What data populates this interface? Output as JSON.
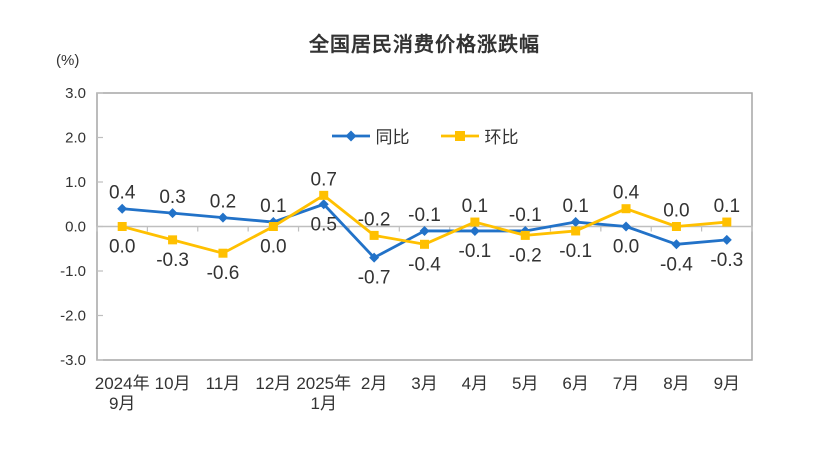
{
  "chart_data": {
    "type": "line",
    "title": "全国居民消费价格涨跌幅",
    "unit_label": "(%)",
    "categories": [
      "2024年\n9月",
      "10月",
      "11月",
      "12月",
      "2025年\n1月",
      "2月",
      "3月",
      "4月",
      "5月",
      "6月",
      "7月",
      "8月",
      "9月"
    ],
    "series": [
      {
        "id": "tongbi",
        "name": "同比",
        "marker": "diamond",
        "color": "#2272C8",
        "values": [
          0.4,
          0.3,
          0.2,
          0.1,
          0.5,
          -0.7,
          -0.1,
          -0.1,
          -0.1,
          0.1,
          0.0,
          -0.4,
          -0.3
        ]
      },
      {
        "id": "huanbi",
        "name": "环比",
        "marker": "square",
        "color": "#FFC000",
        "values": [
          0.0,
          -0.3,
          -0.6,
          0.0,
          0.7,
          -0.2,
          -0.4,
          0.1,
          -0.2,
          -0.1,
          0.4,
          0.0,
          0.1
        ]
      }
    ],
    "ylim": [
      -3.0,
      3.0
    ],
    "yticks": [
      3.0,
      2.0,
      1.0,
      0.0,
      -1.0,
      -2.0,
      -3.0
    ],
    "ytick_format_decimals": 1,
    "grid": false,
    "legend_position": "inside-top-center",
    "colors": {
      "axis": "#BFBFBF",
      "border": "#A6A6A6",
      "text": "#333333"
    }
  }
}
